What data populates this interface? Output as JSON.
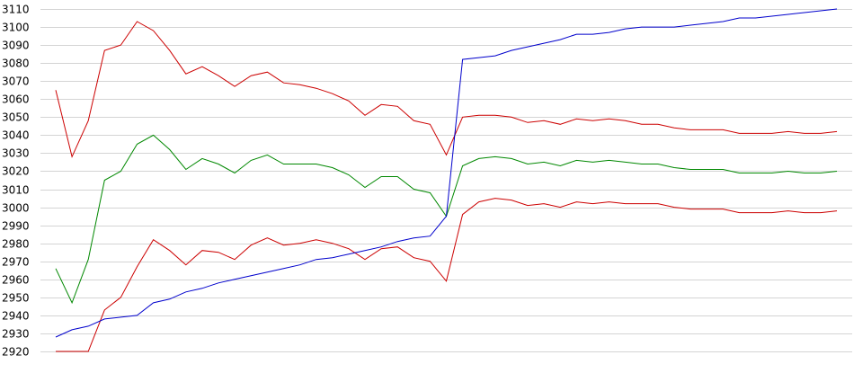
{
  "chart_data": {
    "type": "line",
    "ylim": [
      2920,
      3110
    ],
    "y_ticks": [
      "3110",
      "3100",
      "3090",
      "3080",
      "3070",
      "3060",
      "3050",
      "3040",
      "3030",
      "3020",
      "3010",
      "3000",
      "2990",
      "2980",
      "2970",
      "2960",
      "2950",
      "2940",
      "2930",
      "2920"
    ],
    "grid": true,
    "legend": "none",
    "series": [
      {
        "color": "#cc0000",
        "values": [
          3065,
          3028,
          3048,
          3087,
          3090,
          3103,
          3098,
          3087,
          3074,
          3078,
          3073,
          3067,
          3073,
          3075,
          3069,
          3068,
          3066,
          3063,
          3059,
          3051,
          3057,
          3056,
          3048,
          3046,
          3029,
          3050,
          3051,
          3051,
          3050,
          3047,
          3048,
          3046,
          3049,
          3048,
          3049,
          3048,
          3046,
          3046,
          3044,
          3043,
          3043,
          3043,
          3041,
          3041,
          3041,
          3042,
          3041,
          3041,
          3042
        ]
      },
      {
        "color": "#008800",
        "values": [
          2966,
          2947,
          2971,
          3015,
          3020,
          3035,
          3040,
          3032,
          3021,
          3027,
          3024,
          3019,
          3026,
          3029,
          3024,
          3024,
          3024,
          3022,
          3018,
          3011,
          3017,
          3017,
          3010,
          3008,
          2995,
          3023,
          3027,
          3028,
          3027,
          3024,
          3025,
          3023,
          3026,
          3025,
          3026,
          3025,
          3024,
          3024,
          3022,
          3021,
          3021,
          3021,
          3019,
          3019,
          3019,
          3020,
          3019,
          3019,
          3020
        ]
      },
      {
        "color": "#cc0000",
        "values": [
          2920,
          2920,
          2920,
          2943,
          2950,
          2967,
          2982,
          2976,
          2968,
          2976,
          2975,
          2971,
          2979,
          2983,
          2979,
          2980,
          2982,
          2980,
          2977,
          2971,
          2977,
          2978,
          2972,
          2970,
          2959,
          2996,
          3003,
          3005,
          3004,
          3001,
          3002,
          3000,
          3003,
          3002,
          3003,
          3002,
          3002,
          3002,
          3000,
          2999,
          2999,
          2999,
          2997,
          2997,
          2997,
          2998,
          2997,
          2997,
          2998
        ]
      },
      {
        "color": "#0000cc",
        "values": [
          2928,
          2932,
          2934,
          2938,
          2939,
          2940,
          2947,
          2949,
          2953,
          2955,
          2958,
          2960,
          2962,
          2964,
          2966,
          2968,
          2971,
          2972,
          2974,
          2976,
          2978,
          2981,
          2983,
          2984,
          2995,
          3082,
          3083,
          3084,
          3087,
          3089,
          3091,
          3093,
          3096,
          3096,
          3097,
          3099,
          3100,
          3100,
          3100,
          3101,
          3102,
          3103,
          3105,
          3105,
          3106,
          3107,
          3108,
          3109,
          3110
        ]
      }
    ]
  }
}
